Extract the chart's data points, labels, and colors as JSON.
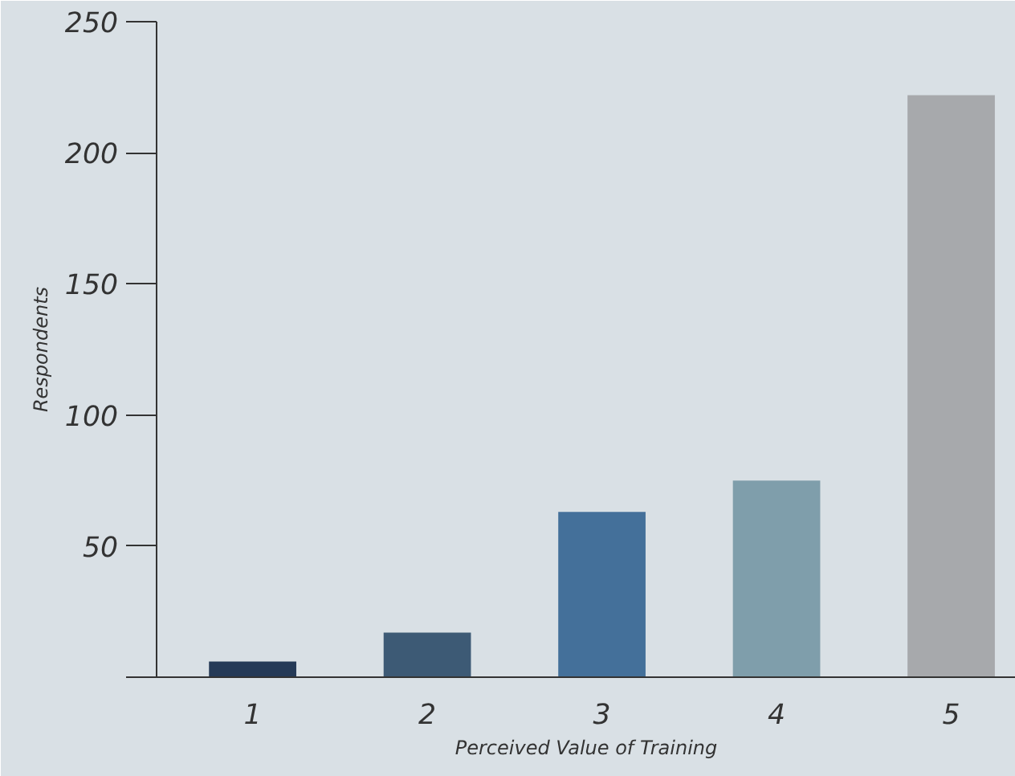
{
  "chart_data": {
    "type": "bar",
    "xlabel": "Perceived Value of Training",
    "ylabel": "Respondents",
    "categories": [
      "1",
      "2",
      "3",
      "4",
      "5"
    ],
    "values": [
      6,
      17,
      63,
      75,
      222
    ],
    "colors": [
      "#253a57",
      "#3d5a75",
      "#44709a",
      "#7f9eab",
      "#a7a9ac"
    ],
    "ylim": [
      0,
      250
    ],
    "yticks": [
      {
        "value": 0,
        "label": null
      },
      50,
      100,
      150,
      200,
      250
    ],
    "grid": false
  }
}
